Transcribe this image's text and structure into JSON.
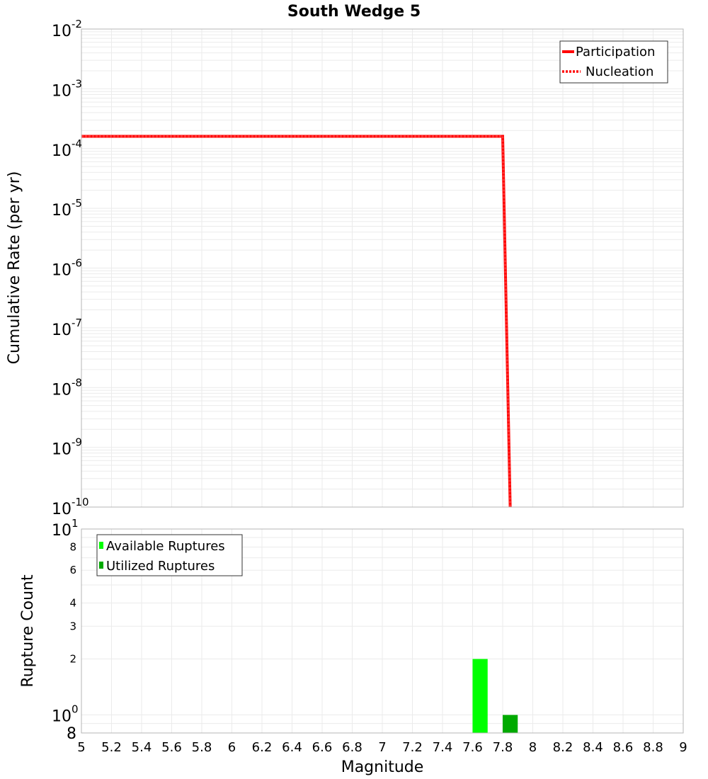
{
  "chart_data": [
    {
      "type": "line",
      "title": "South Wedge 5",
      "xlabel": "Magnitude",
      "ylabel": "Cumulative Rate (per yr)",
      "yscale": "log",
      "xlim": [
        5,
        9
      ],
      "ylim": [
        1e-10,
        0.01
      ],
      "grid": true,
      "legend_position": "top-right",
      "y_ticks": [
        {
          "base": "10",
          "exp": "-2"
        },
        {
          "base": "10",
          "exp": "-3"
        },
        {
          "base": "10",
          "exp": "-4"
        },
        {
          "base": "10",
          "exp": "-5"
        },
        {
          "base": "10",
          "exp": "-6"
        },
        {
          "base": "10",
          "exp": "-7"
        },
        {
          "base": "10",
          "exp": "-8"
        },
        {
          "base": "10",
          "exp": "-9"
        },
        {
          "base": "10",
          "exp": "-10"
        }
      ],
      "series": [
        {
          "name": "Participation",
          "style": "solid",
          "color": "#ff0000",
          "x": [
            5.0,
            7.8,
            7.85
          ],
          "y": [
            0.00016,
            0.00016,
            1e-10
          ]
        },
        {
          "name": "Nucleation",
          "style": "dotted",
          "color": "#ff0000",
          "x": [
            5.0,
            7.8,
            7.85
          ],
          "y": [
            0.00016,
            0.00016,
            1e-10
          ]
        }
      ]
    },
    {
      "type": "bar",
      "xlabel": "Magnitude",
      "ylabel": "Rupture Count",
      "yscale": "log",
      "xlim": [
        5,
        9
      ],
      "ylim": [
        0.8,
        10
      ],
      "grid": true,
      "legend_position": "top-left",
      "y_ticks_major": [
        {
          "base": "10",
          "exp": "1"
        },
        {
          "base": "10",
          "exp": "0"
        }
      ],
      "y_ticks_minor": [
        "8",
        "6",
        "4",
        "3",
        "2",
        "8"
      ],
      "series": [
        {
          "name": "Available Ruptures",
          "color": "#00ff00",
          "bins": [
            {
              "x_start": 7.6,
              "x_end": 7.7,
              "value": 2
            }
          ]
        },
        {
          "name": "Utilized Ruptures",
          "color": "#00aa00",
          "bins": [
            {
              "x_start": 7.8,
              "x_end": 7.9,
              "value": 1
            }
          ]
        }
      ]
    }
  ],
  "x_ticks": [
    "5",
    "5.2",
    "5.4",
    "5.6",
    "5.8",
    "6",
    "6.2",
    "6.4",
    "6.6",
    "6.8",
    "7",
    "7.2",
    "7.4",
    "7.6",
    "7.8",
    "8",
    "8.2",
    "8.4",
    "8.6",
    "8.8",
    "9"
  ],
  "labels": {
    "title": "South Wedge 5",
    "top_ylabel": "Cumulative Rate (per yr)",
    "bottom_ylabel": "Rupture Count",
    "xlabel": "Magnitude",
    "legend_participation": "Participation",
    "legend_nucleation": "Nucleation",
    "legend_available": "Available Ruptures",
    "legend_utilized": "Utilized Ruptures"
  },
  "colors": {
    "line": "#ff0000",
    "available": "#00ff00",
    "utilized": "#00aa00",
    "grid": "#ebebeb",
    "frame": "#b4b4b4"
  }
}
